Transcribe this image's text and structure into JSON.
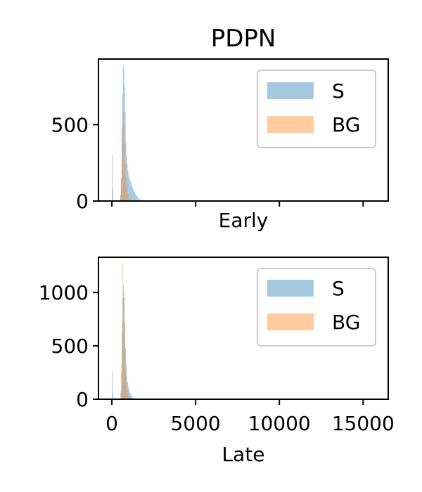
{
  "chart_data": {
    "type": "histogram",
    "title": "PDPN",
    "panels": [
      {
        "xlabel": "Early",
        "ylabel": "",
        "xlim": [
          -800,
          16500
        ],
        "ylim": [
          0,
          930
        ],
        "xticks": [
          0,
          5000,
          10000,
          15000
        ],
        "show_xticklabels": false,
        "yticks": [
          0,
          500
        ],
        "ytick_labels": [
          "0",
          "500"
        ],
        "legend": {
          "position": "top-right",
          "entries": [
            "S",
            "BG"
          ]
        },
        "series": [
          {
            "name": "S",
            "color": "#1f77b4",
            "opacity": 0.4,
            "bins": [
              [
                0,
                300
              ],
              [
                40,
                80
              ],
              [
                500,
                40
              ],
              [
                540,
                150
              ],
              [
                580,
                480
              ],
              [
                620,
                700
              ],
              [
                660,
                890
              ],
              [
                700,
                860
              ],
              [
                740,
                750
              ],
              [
                780,
                580
              ],
              [
                820,
                380
              ],
              [
                860,
                290
              ],
              [
                900,
                240
              ],
              [
                940,
                200
              ],
              [
                980,
                170
              ],
              [
                1020,
                150
              ],
              [
                1060,
                140
              ],
              [
                1100,
                130
              ],
              [
                1140,
                120
              ],
              [
                1180,
                100
              ],
              [
                1220,
                90
              ],
              [
                1260,
                78
              ],
              [
                1300,
                66
              ],
              [
                1340,
                56
              ],
              [
                1380,
                48
              ],
              [
                1420,
                40
              ],
              [
                1460,
                33
              ],
              [
                1500,
                27
              ],
              [
                1560,
                22
              ],
              [
                1620,
                17
              ],
              [
                1700,
                13
              ],
              [
                1780,
                10
              ],
              [
                1860,
                7
              ],
              [
                1960,
                5
              ],
              [
                2080,
                4
              ],
              [
                2200,
                3
              ],
              [
                2400,
                2
              ],
              [
                2700,
                1
              ],
              [
                3100,
                1
              ]
            ]
          },
          {
            "name": "BG",
            "color": "#ff7f0e",
            "opacity": 0.4,
            "bins": [
              [
                500,
                20
              ],
              [
                540,
                90
              ],
              [
                580,
                260
              ],
              [
                620,
                470
              ],
              [
                660,
                590
              ],
              [
                700,
                510
              ],
              [
                740,
                380
              ],
              [
                780,
                240
              ],
              [
                820,
                150
              ],
              [
                860,
                90
              ],
              [
                900,
                60
              ],
              [
                940,
                40
              ],
              [
                980,
                25
              ],
              [
                1020,
                15
              ],
              [
                1060,
                9
              ],
              [
                1100,
                5
              ],
              [
                1140,
                3
              ],
              [
                1200,
                2
              ]
            ]
          }
        ]
      },
      {
        "xlabel": "Late",
        "ylabel": "",
        "xlim": [
          -800,
          16500
        ],
        "ylim": [
          0,
          1330
        ],
        "xticks": [
          0,
          5000,
          10000,
          15000
        ],
        "xtick_labels": [
          "0",
          "5000",
          "10000",
          "15000"
        ],
        "show_xticklabels": true,
        "yticks": [
          0,
          500,
          1000
        ],
        "ytick_labels": [
          "0",
          "500",
          "1000"
        ],
        "legend": {
          "position": "top-right",
          "entries": [
            "S",
            "BG"
          ]
        },
        "series": [
          {
            "name": "S",
            "color": "#1f77b4",
            "opacity": 0.4,
            "bins": [
              [
                0,
                270
              ],
              [
                40,
                60
              ],
              [
                520,
                60
              ],
              [
                560,
                250
              ],
              [
                600,
                620
              ],
              [
                640,
                950
              ],
              [
                680,
                1070
              ],
              [
                720,
                950
              ],
              [
                760,
                720
              ],
              [
                800,
                480
              ],
              [
                840,
                330
              ],
              [
                880,
                220
              ],
              [
                920,
                160
              ],
              [
                960,
                120
              ],
              [
                1000,
                90
              ],
              [
                1040,
                70
              ],
              [
                1080,
                52
              ],
              [
                1120,
                40
              ],
              [
                1160,
                30
              ],
              [
                1200,
                22
              ],
              [
                1260,
                16
              ],
              [
                1320,
                11
              ],
              [
                1400,
                7
              ],
              [
                1500,
                5
              ],
              [
                1620,
                3
              ],
              [
                1780,
                2
              ],
              [
                2000,
                1
              ]
            ]
          },
          {
            "name": "BG",
            "color": "#ff7f0e",
            "opacity": 0.4,
            "bins": [
              [
                520,
                80
              ],
              [
                560,
                320
              ],
              [
                600,
                760
              ],
              [
                640,
                1270
              ],
              [
                680,
                1000
              ],
              [
                720,
                700
              ],
              [
                760,
                440
              ],
              [
                800,
                270
              ],
              [
                840,
                160
              ],
              [
                880,
                95
              ],
              [
                920,
                55
              ],
              [
                960,
                30
              ],
              [
                1000,
                16
              ],
              [
                1040,
                9
              ],
              [
                1080,
                5
              ],
              [
                1140,
                3
              ],
              [
                1200,
                2
              ]
            ]
          }
        ]
      }
    ]
  }
}
